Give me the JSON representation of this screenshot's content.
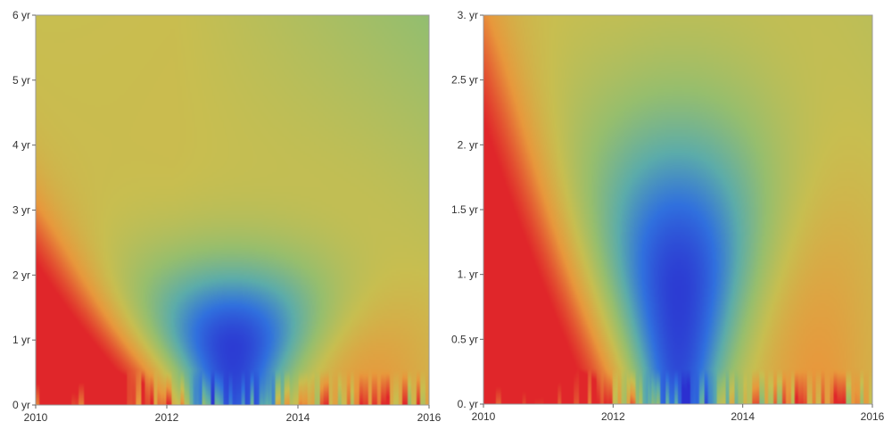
{
  "chart_data": [
    {
      "type": "heatmap",
      "title": "",
      "xlabel": "",
      "ylabel": "",
      "x_ticks": [
        "2010",
        "2012",
        "2014",
        "2016"
      ],
      "x_tick_values": [
        2010,
        2012,
        2014,
        2016
      ],
      "xlim": [
        2010,
        2016
      ],
      "y_ticks": [
        "0 yr",
        "1 yr",
        "2 yr",
        "3 yr",
        "4 yr",
        "5 yr",
        "6 yr"
      ],
      "y_tick_values": [
        0,
        1,
        2,
        3,
        4,
        5,
        6
      ],
      "ylim": [
        0,
        6
      ],
      "colormap": "rainbow",
      "color_low": "#2b2fd0",
      "color_high": "#e0262a",
      "features": [
        {
          "name": "high",
          "x": 2010.3,
          "y": 0.8
        },
        {
          "name": "low",
          "x": 2013.0,
          "y": 0.85
        },
        {
          "name": "moderate",
          "x": 2014.8,
          "y": 0.8
        }
      ]
    },
    {
      "type": "heatmap",
      "title": "",
      "xlabel": "",
      "ylabel": "",
      "x_ticks": [
        "2010",
        "2012",
        "2014",
        "2016"
      ],
      "x_tick_values": [
        2010,
        2012,
        2014,
        2016
      ],
      "xlim": [
        2010,
        2016
      ],
      "y_ticks": [
        "0. yr",
        "0.5 yr",
        "1. yr",
        "1.5 yr",
        "2. yr",
        "2.5 yr",
        "3. yr"
      ],
      "y_tick_values": [
        0,
        0.5,
        1,
        1.5,
        2,
        2.5,
        3
      ],
      "ylim": [
        0,
        3
      ],
      "colormap": "rainbow",
      "color_low": "#2b2fd0",
      "color_high": "#e0262a",
      "features": [
        {
          "name": "high",
          "x": 2010.4,
          "y": 1.0
        },
        {
          "name": "low",
          "x": 2013.0,
          "y": 1.0
        },
        {
          "name": "moderate",
          "x": 2014.9,
          "y": 0.9
        }
      ]
    }
  ]
}
